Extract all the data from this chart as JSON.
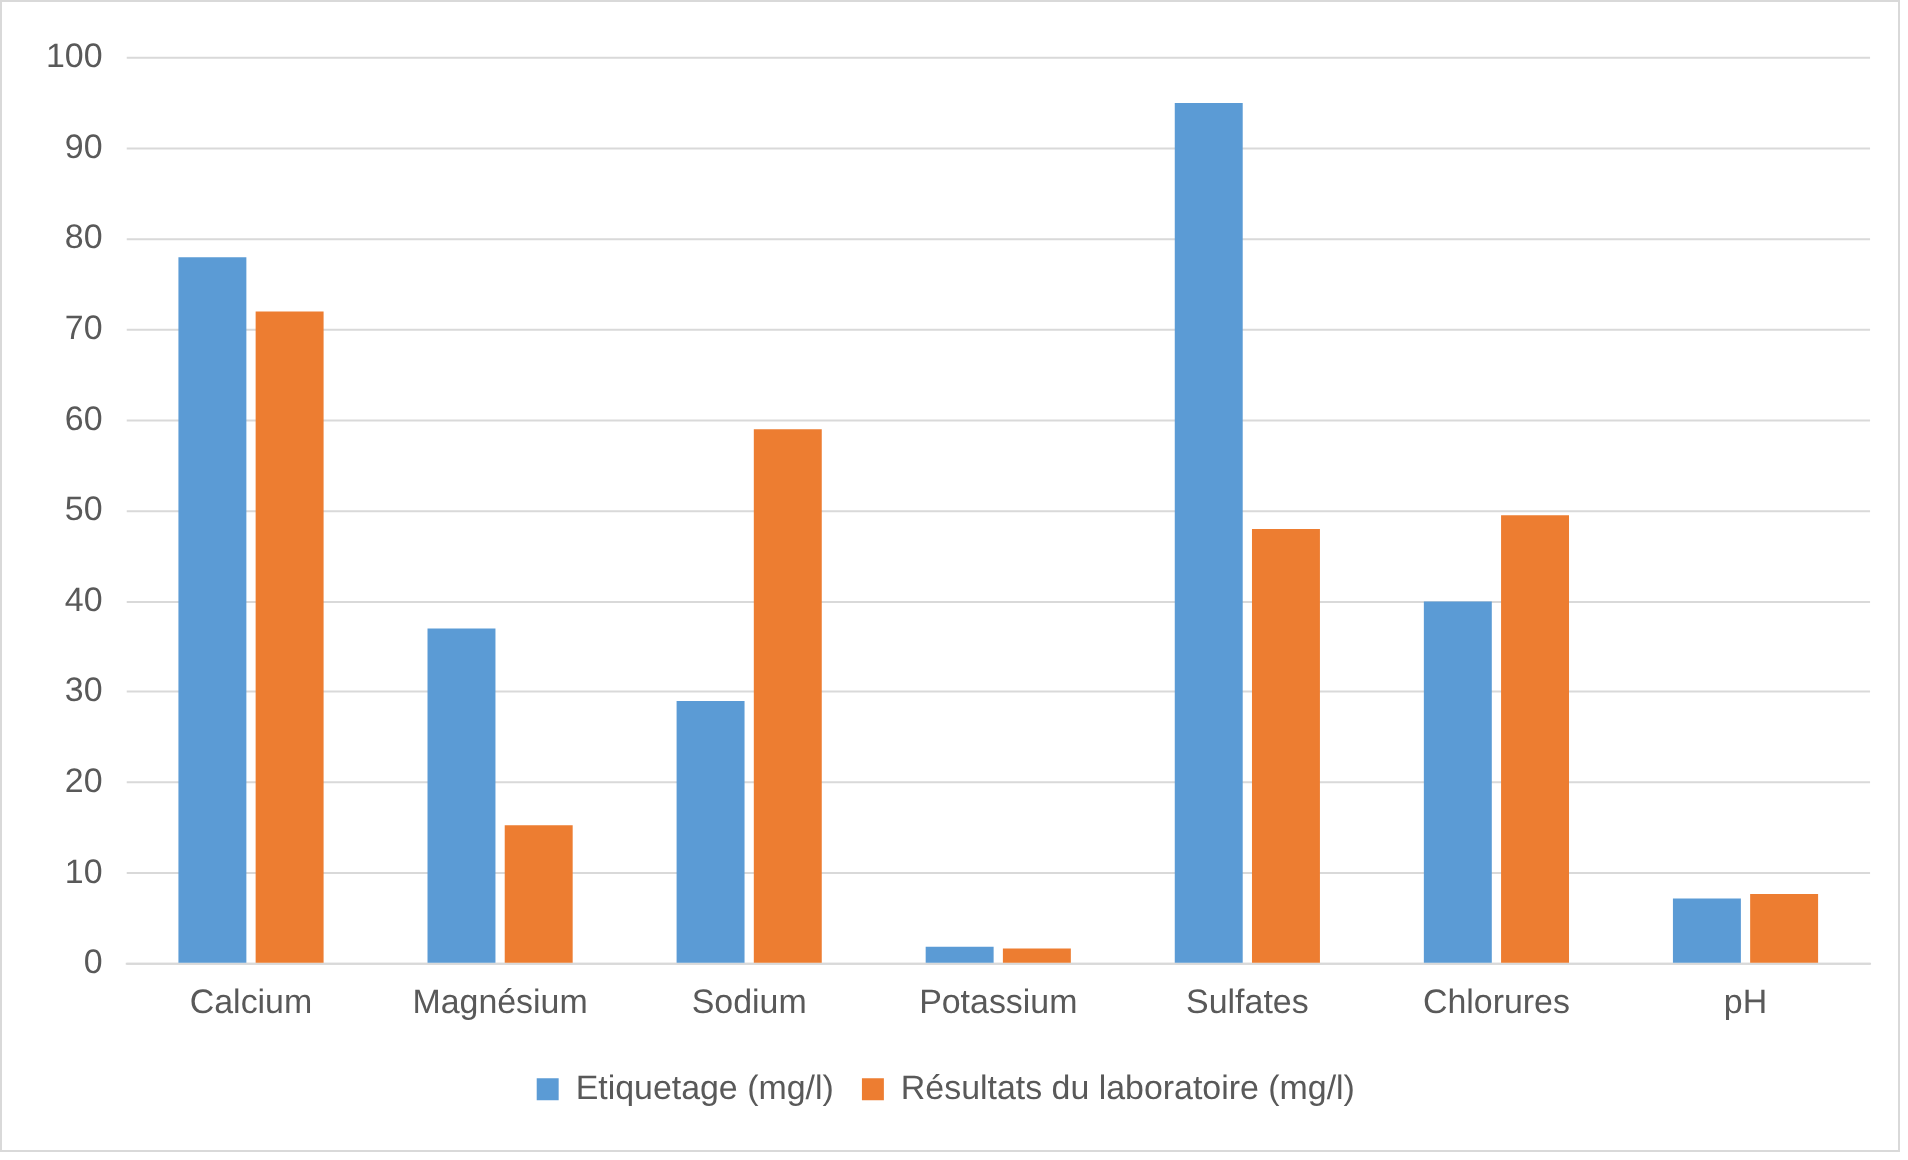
{
  "chart_data": {
    "type": "bar",
    "categories": [
      "Calcium",
      "Magnésium",
      "Sodium",
      "Potassium",
      "Sulfates",
      "Chlorures",
      "pH"
    ],
    "series": [
      {
        "name": "Etiquetage (mg/l)",
        "color": "#5b9bd5",
        "values": [
          78,
          37,
          29,
          1.9,
          95,
          40,
          7.2
        ]
      },
      {
        "name": "Résultats du laboratoire (mg/l)",
        "color": "#ed7d31",
        "values": [
          72,
          15.3,
          59,
          1.7,
          48,
          49.5,
          7.7
        ]
      }
    ],
    "ylim": [
      0,
      100
    ],
    "yticks": [
      0,
      10,
      20,
      30,
      40,
      50,
      60,
      70,
      80,
      90,
      100
    ],
    "grid": "y",
    "legend": "bottom"
  }
}
